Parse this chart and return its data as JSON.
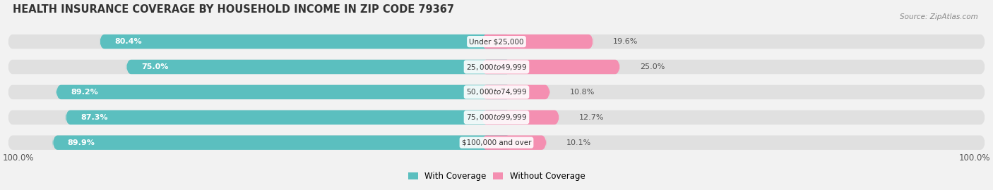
{
  "title": "HEALTH INSURANCE COVERAGE BY HOUSEHOLD INCOME IN ZIP CODE 79367",
  "source": "Source: ZipAtlas.com",
  "categories": [
    "Under $25,000",
    "$25,000 to $49,999",
    "$50,000 to $74,999",
    "$75,000 to $99,999",
    "$100,000 and over"
  ],
  "with_coverage": [
    80.4,
    75.0,
    89.2,
    87.3,
    89.9
  ],
  "without_coverage": [
    19.6,
    25.0,
    10.8,
    12.7,
    10.1
  ],
  "color_with": "#5bbfbf",
  "color_without": "#f48fb1",
  "bg_color": "#f2f2f2",
  "bar_bg": "#e0e0e0",
  "legend_with": "With Coverage",
  "legend_without": "Without Coverage",
  "left_label": "100.0%",
  "right_label": "100.0%",
  "title_fontsize": 10.5,
  "label_fontsize": 8.5,
  "bar_label_fontsize": 8,
  "category_fontsize": 7.5
}
